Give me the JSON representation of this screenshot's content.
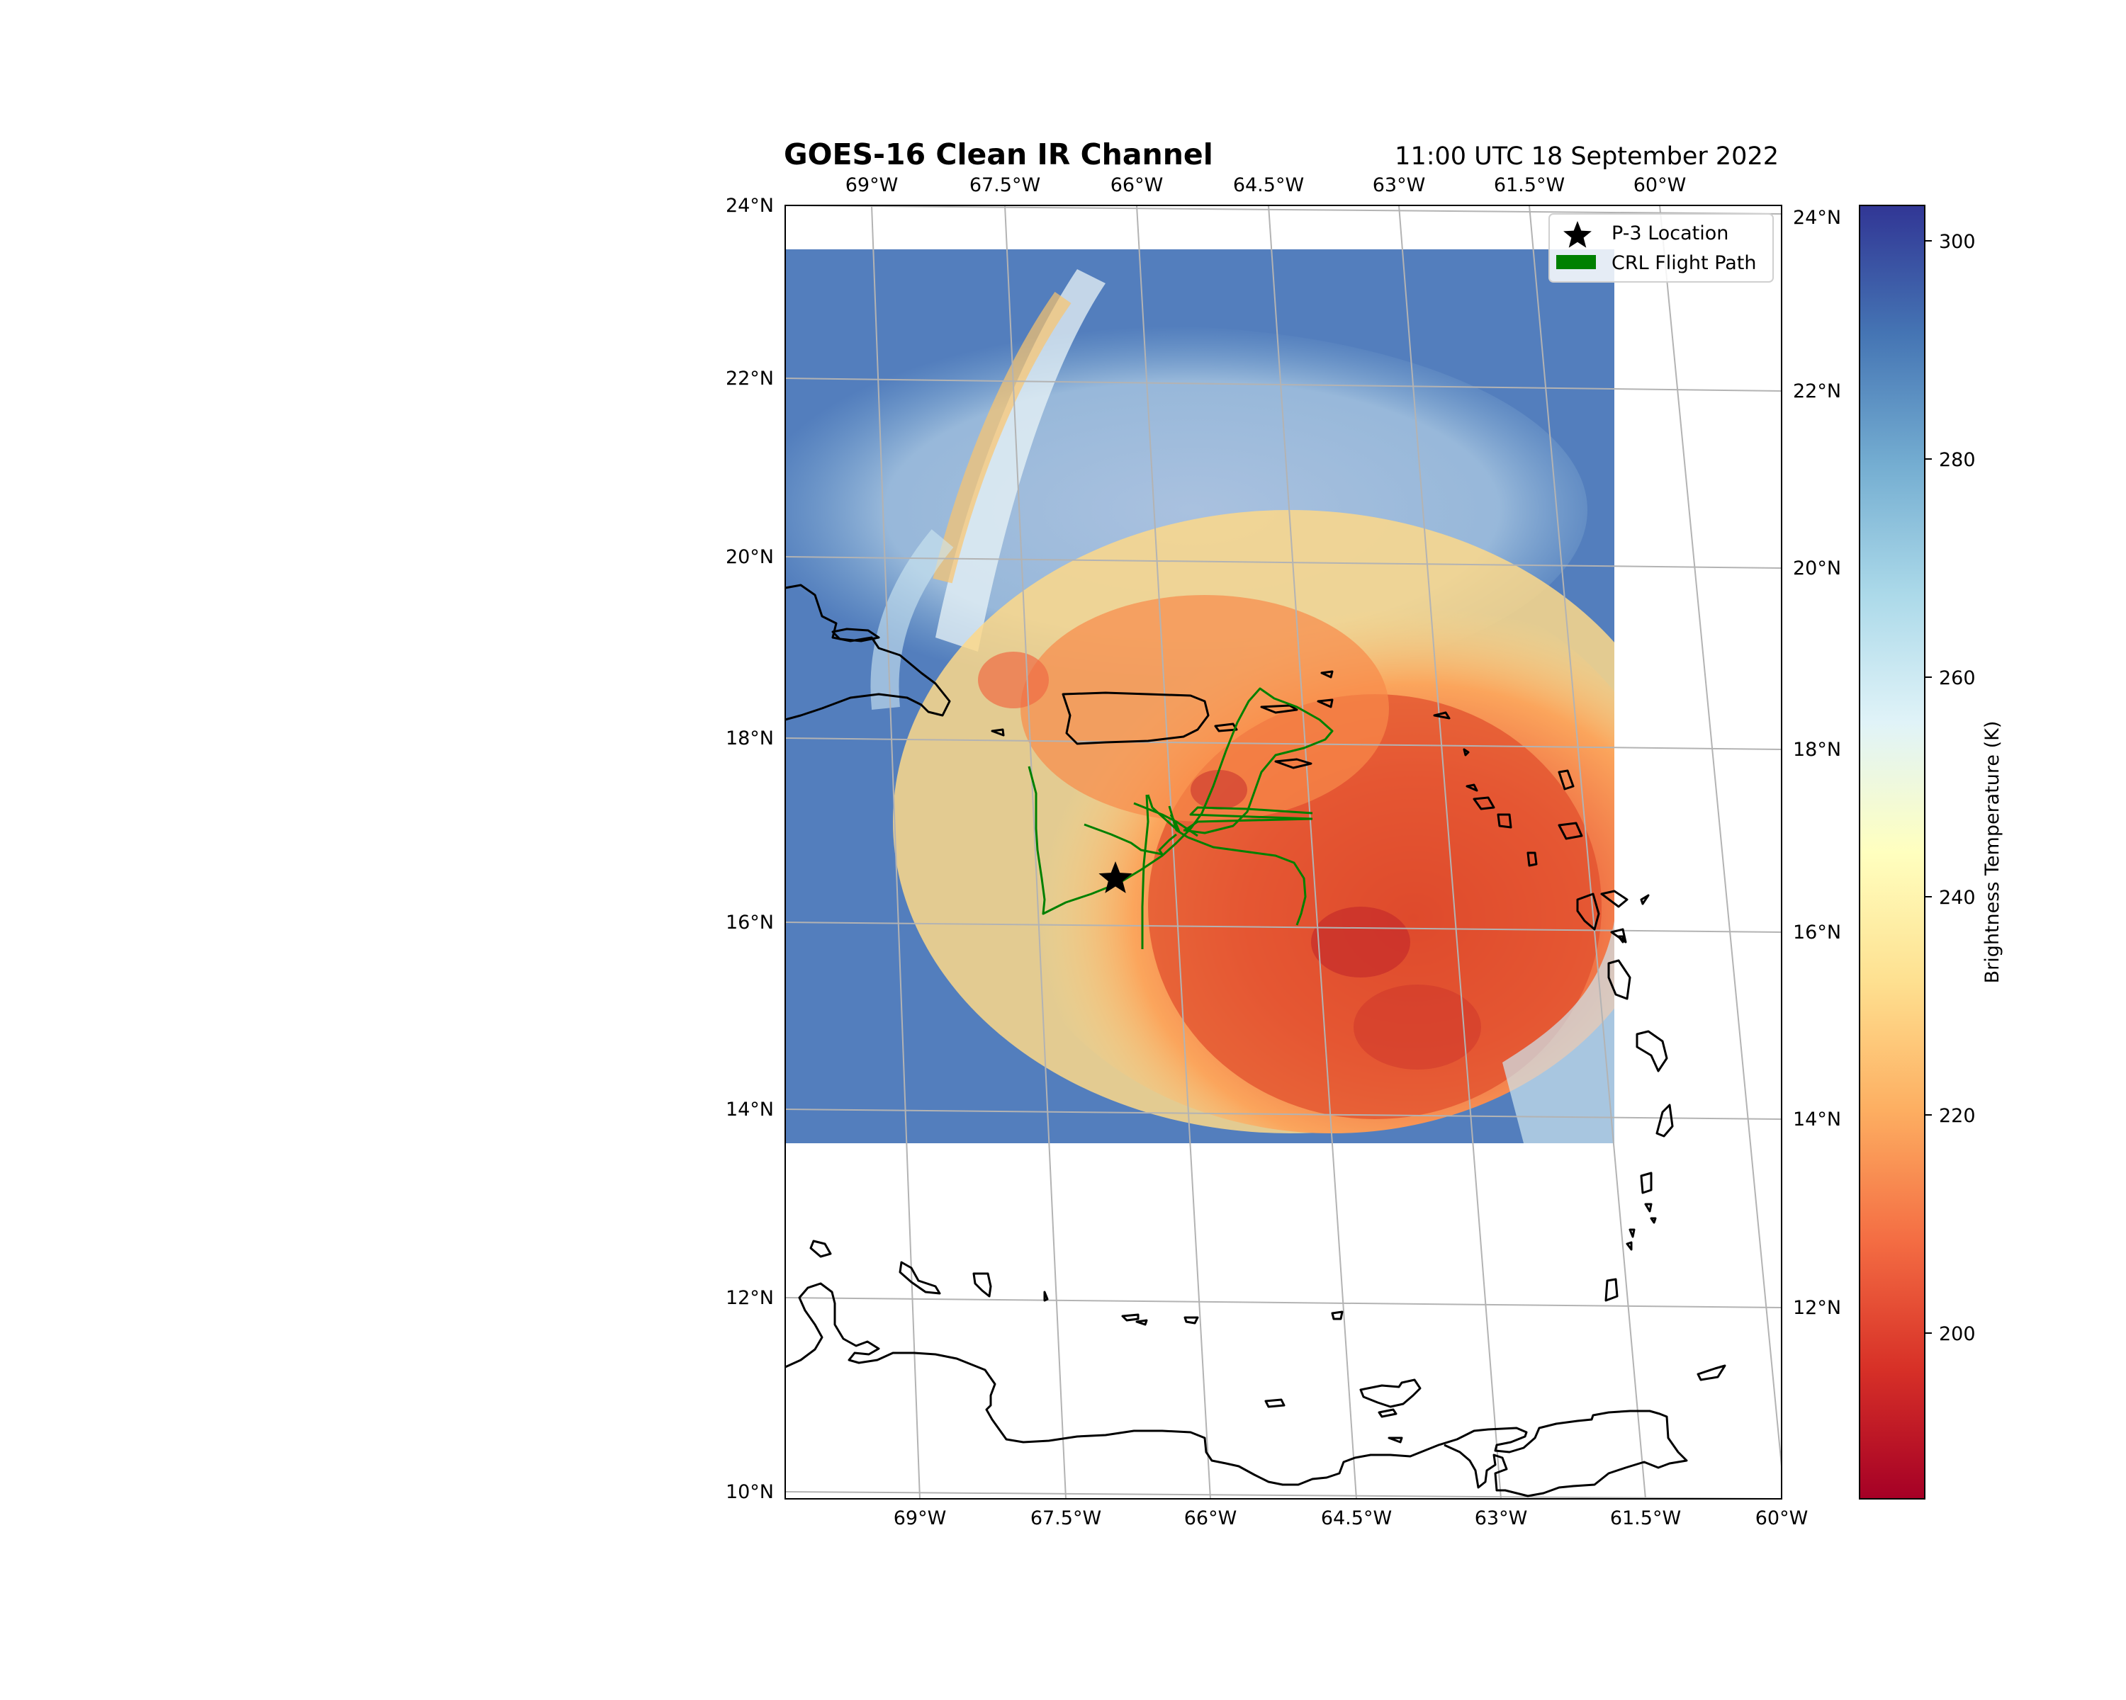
{
  "title": "GOES-16 Clean IR Channel",
  "timestamp": "11:00 UTC 18 September 2022",
  "legend": {
    "p3_label": "P-3 Location",
    "flight_label": "CRL Flight Path",
    "p3_color": "#000000",
    "flight_color": "#008000"
  },
  "colorbar": {
    "label": "Brightness Temperature (K)",
    "colormap": "RdYlBu",
    "ticks": [
      "300",
      "280",
      "260",
      "240",
      "220",
      "200"
    ]
  },
  "axes": {
    "left_lat_labels": [
      "24°N",
      "22°N",
      "20°N",
      "18°N",
      "16°N",
      "14°N",
      "12°N",
      "10°N"
    ],
    "right_lat_labels": [
      "24°N",
      "22°N",
      "20°N",
      "18°N",
      "16°N",
      "14°N",
      "12°N"
    ],
    "top_lon_labels": [
      "69°W",
      "67.5°W",
      "66°W",
      "64.5°W",
      "63°W",
      "61.5°W",
      "60°W"
    ],
    "bottom_lon_labels": [
      "69°W",
      "67.5°W",
      "66°W",
      "64.5°W",
      "63°W",
      "61.5°W",
      "60°W"
    ]
  },
  "chart_data": {
    "type": "map",
    "extent": {
      "lon": [
        -70,
        -60
      ],
      "lat": [
        10,
        24
      ]
    },
    "p3_location": {
      "lon": -66.6,
      "lat": 16.5
    },
    "colorbar_range_K": [
      185,
      303
    ],
    "grid": true
  }
}
